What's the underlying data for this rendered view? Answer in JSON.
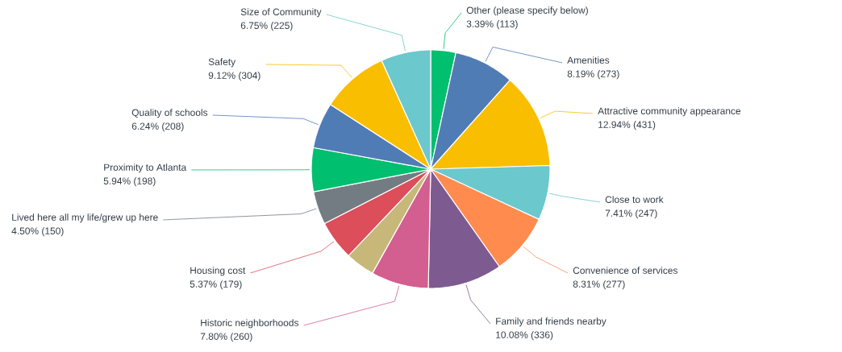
{
  "chart_data": {
    "type": "pie",
    "categories": [
      "Other (please specify below)",
      "Amenities",
      "Attractive community appearance",
      "Close to work",
      "Convenience of services",
      "Family and friends nearby",
      "Historic neighborhoods",
      null,
      "Housing cost",
      "Lived here all my life/grew up here",
      "Proximity to Atlanta",
      "Quality of schools",
      "Safety",
      "Size of Community"
    ],
    "values": [
      3.39,
      8.19,
      12.94,
      7.41,
      8.31,
      10.08,
      7.8,
      3.96,
      5.37,
      4.5,
      5.94,
      6.24,
      9.12,
      6.75
    ],
    "value_labels": [
      "3.39% (113)",
      "8.19% (273)",
      "12.94% (431)",
      "7.41% (247)",
      "8.31% (277)",
      "10.08% (336)",
      "7.80% (260)",
      null,
      "5.37% (179)",
      "4.50% (150)",
      "5.94% (198)",
      "6.24% (208)",
      "9.12% (304)",
      "6.75% (225)"
    ],
    "colors": [
      "#00bf6f",
      "#507cb6",
      "#f9be00",
      "#6bc8cd",
      "#ff8b4f",
      "#7d5b91",
      "#d25f90",
      "#c7b879",
      "#dc4e5a",
      "#747c83",
      "#00bf6f",
      "#507cb6",
      "#f9be00",
      "#6bc8cd"
    ]
  }
}
